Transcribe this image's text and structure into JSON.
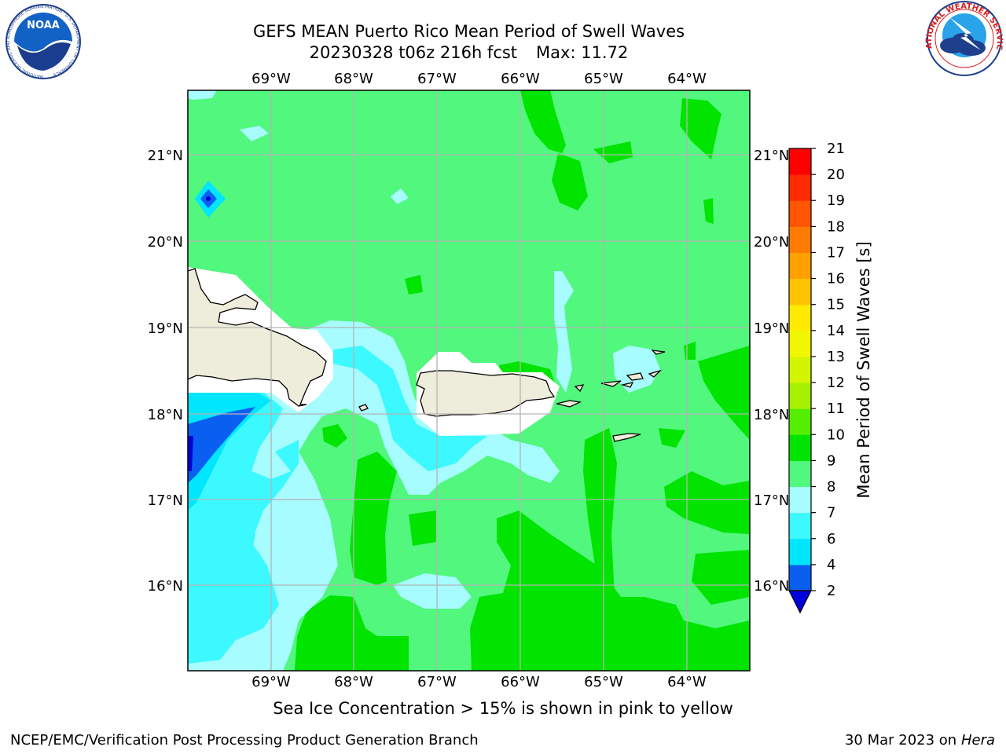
{
  "title": {
    "line1": "GEFS MEAN Puerto Rico Mean Period of Swell Waves",
    "line2_date": "20230328 t06z 216h fcst",
    "line2_max": "Max: 11.72"
  },
  "subtitle": "Sea Ice Concentration > 15% is shown in pink to yellow",
  "footer": {
    "left": "NCEP/EMC/Verification Post Processing Product Generation Branch",
    "date": "30 Mar 2023 on",
    "machine": "Hera"
  },
  "logos": {
    "left": "NOAA",
    "left_ring": "NATIONAL OCEANIC AND ATMOSPHERIC ADMINISTRATION · U.S. DEPARTMENT OF COMMERCE",
    "right_ring": "NATIONAL WEATHER SERVICE"
  },
  "map": {
    "lon_labels": [
      "69°W",
      "68°W",
      "67°W",
      "66°W",
      "65°W",
      "64°W"
    ],
    "lat_labels": [
      "21°N",
      "20°N",
      "19°N",
      "18°N",
      "17°N",
      "16°N"
    ],
    "grid": true
  },
  "colorbar": {
    "label": "Mean Period of Swell Waves [s]",
    "ticks": [
      "2",
      "4",
      "6",
      "7",
      "8",
      "9",
      "10",
      "11",
      "12",
      "13",
      "14",
      "15",
      "16",
      "17",
      "18",
      "19",
      "20",
      "21"
    ],
    "colors": [
      "#0a5ff0",
      "#00e6ff",
      "#3cf8ff",
      "#a6fcff",
      "#52f77e",
      "#00e400",
      "#55ee00",
      "#a6f000",
      "#d4f500",
      "#f2f700",
      "#ffeb00",
      "#ffc300",
      "#ffa000",
      "#ff7b00",
      "#ff5500",
      "#ff2b00",
      "#ff0000"
    ],
    "extend_color": "#0000dd"
  }
}
